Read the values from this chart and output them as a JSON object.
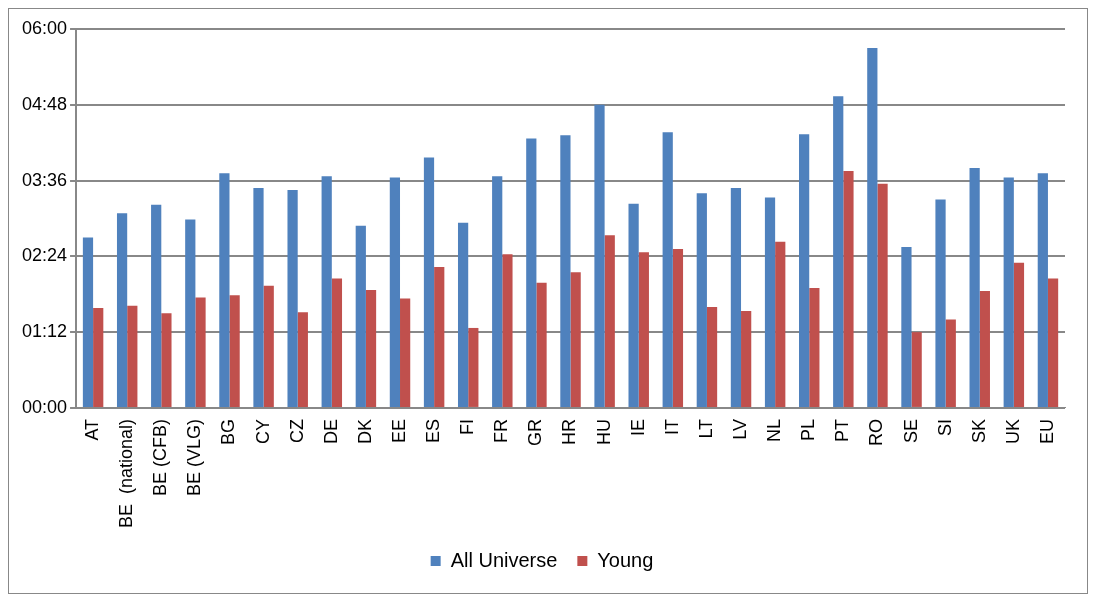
{
  "chart_data": {
    "type": "bar",
    "categories": [
      "AT",
      "BE  (national)",
      "BE (CFB)",
      "BE (VLG)",
      "BG",
      "CY",
      "CZ",
      "DE",
      "DK",
      "EE",
      "ES",
      "FI",
      "FR",
      "GR",
      "HR",
      "HU",
      "IE",
      "IT",
      "LT",
      "LV",
      "NL",
      "PL",
      "PT",
      "RO",
      "SE",
      "SI",
      "SK",
      "UK",
      "EU"
    ],
    "series": [
      {
        "name": "All Universe",
        "color": "#4f81bd",
        "values": [
          162,
          185,
          193,
          179,
          223,
          209,
          207,
          220,
          173,
          219,
          238,
          176,
          220,
          256,
          259,
          288,
          194,
          262,
          204,
          209,
          200,
          260,
          296,
          342,
          153,
          198,
          228,
          219,
          223
        ]
      },
      {
        "name": "Young",
        "color": "#c0504d",
        "values": [
          95,
          97,
          90,
          105,
          107,
          116,
          91,
          123,
          112,
          104,
          134,
          76,
          146,
          119,
          129,
          164,
          148,
          151,
          96,
          92,
          158,
          114,
          225,
          213,
          72,
          84,
          111,
          138,
          123
        ]
      }
    ],
    "ylim": [
      0,
      360
    ],
    "yticks": [
      {
        "value": 0,
        "label": "00:00"
      },
      {
        "value": 72,
        "label": "01:12"
      },
      {
        "value": 144,
        "label": "02:24"
      },
      {
        "value": 216,
        "label": "03:36"
      },
      {
        "value": 288,
        "label": "04:48"
      },
      {
        "value": 360,
        "label": "06:00"
      }
    ],
    "grid": "y",
    "legend": "bottom"
  }
}
